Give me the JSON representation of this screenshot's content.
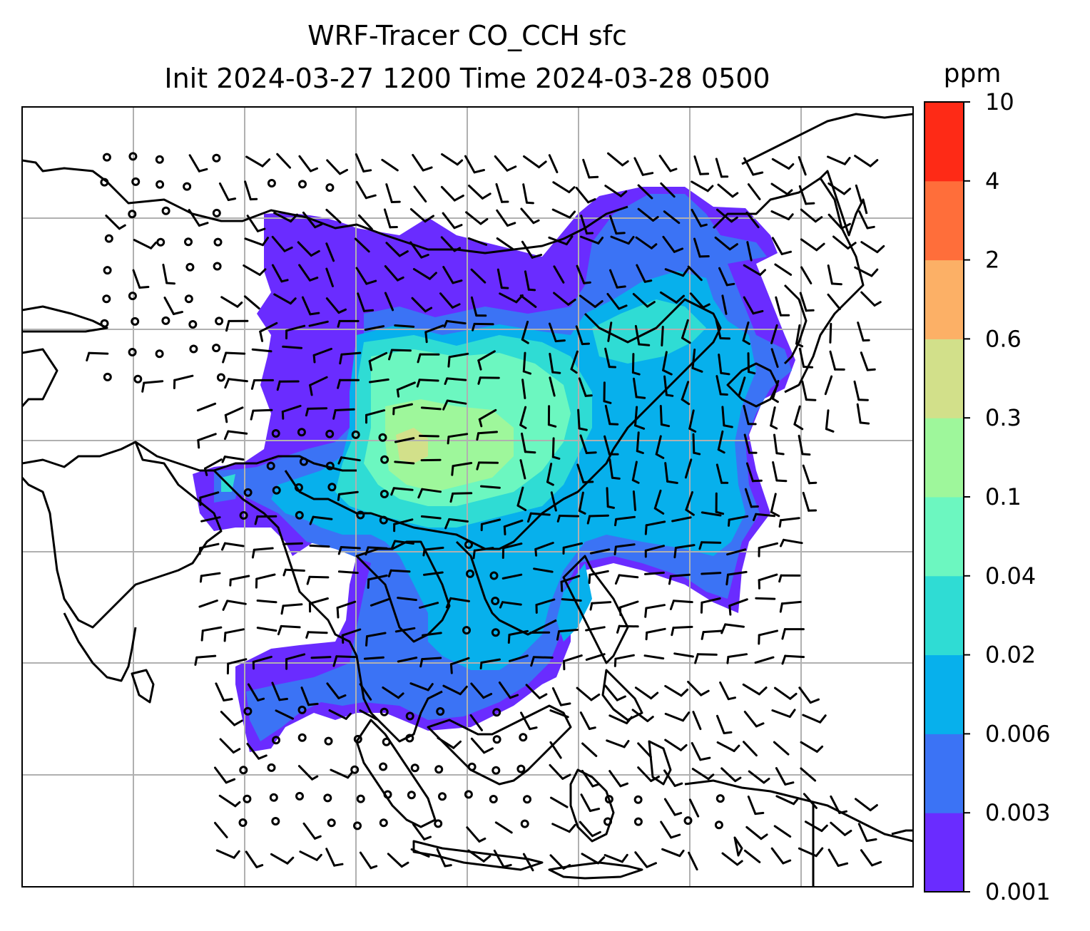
{
  "figure": {
    "title_line1": "WRF-Tracer CO_CCH sfc",
    "title_line2": "Init 2024-03-27 1200 Time 2024-03-28 0500"
  },
  "colorbar": {
    "unit": "ppm",
    "ticks": [
      "0.001",
      "0.003",
      "0.006",
      "0.02",
      "0.04",
      "0.1",
      "0.3",
      "0.6",
      "2",
      "4",
      "10"
    ],
    "colors": [
      "#6a2cff",
      "#3b73f5",
      "#07b0ec",
      "#2fdcd4",
      "#6cf7c0",
      "#9ef79b",
      "#d2e08a",
      "#fcb066",
      "#ff6e3a",
      "#fe2a16"
    ]
  },
  "map": {
    "gridline_color": "#b0b0b0",
    "coastline_color": "#000000",
    "plume_levels_shown": [
      "0.001",
      "0.003",
      "0.006",
      "0.02",
      "0.04",
      "0.1",
      "0.3"
    ]
  }
}
